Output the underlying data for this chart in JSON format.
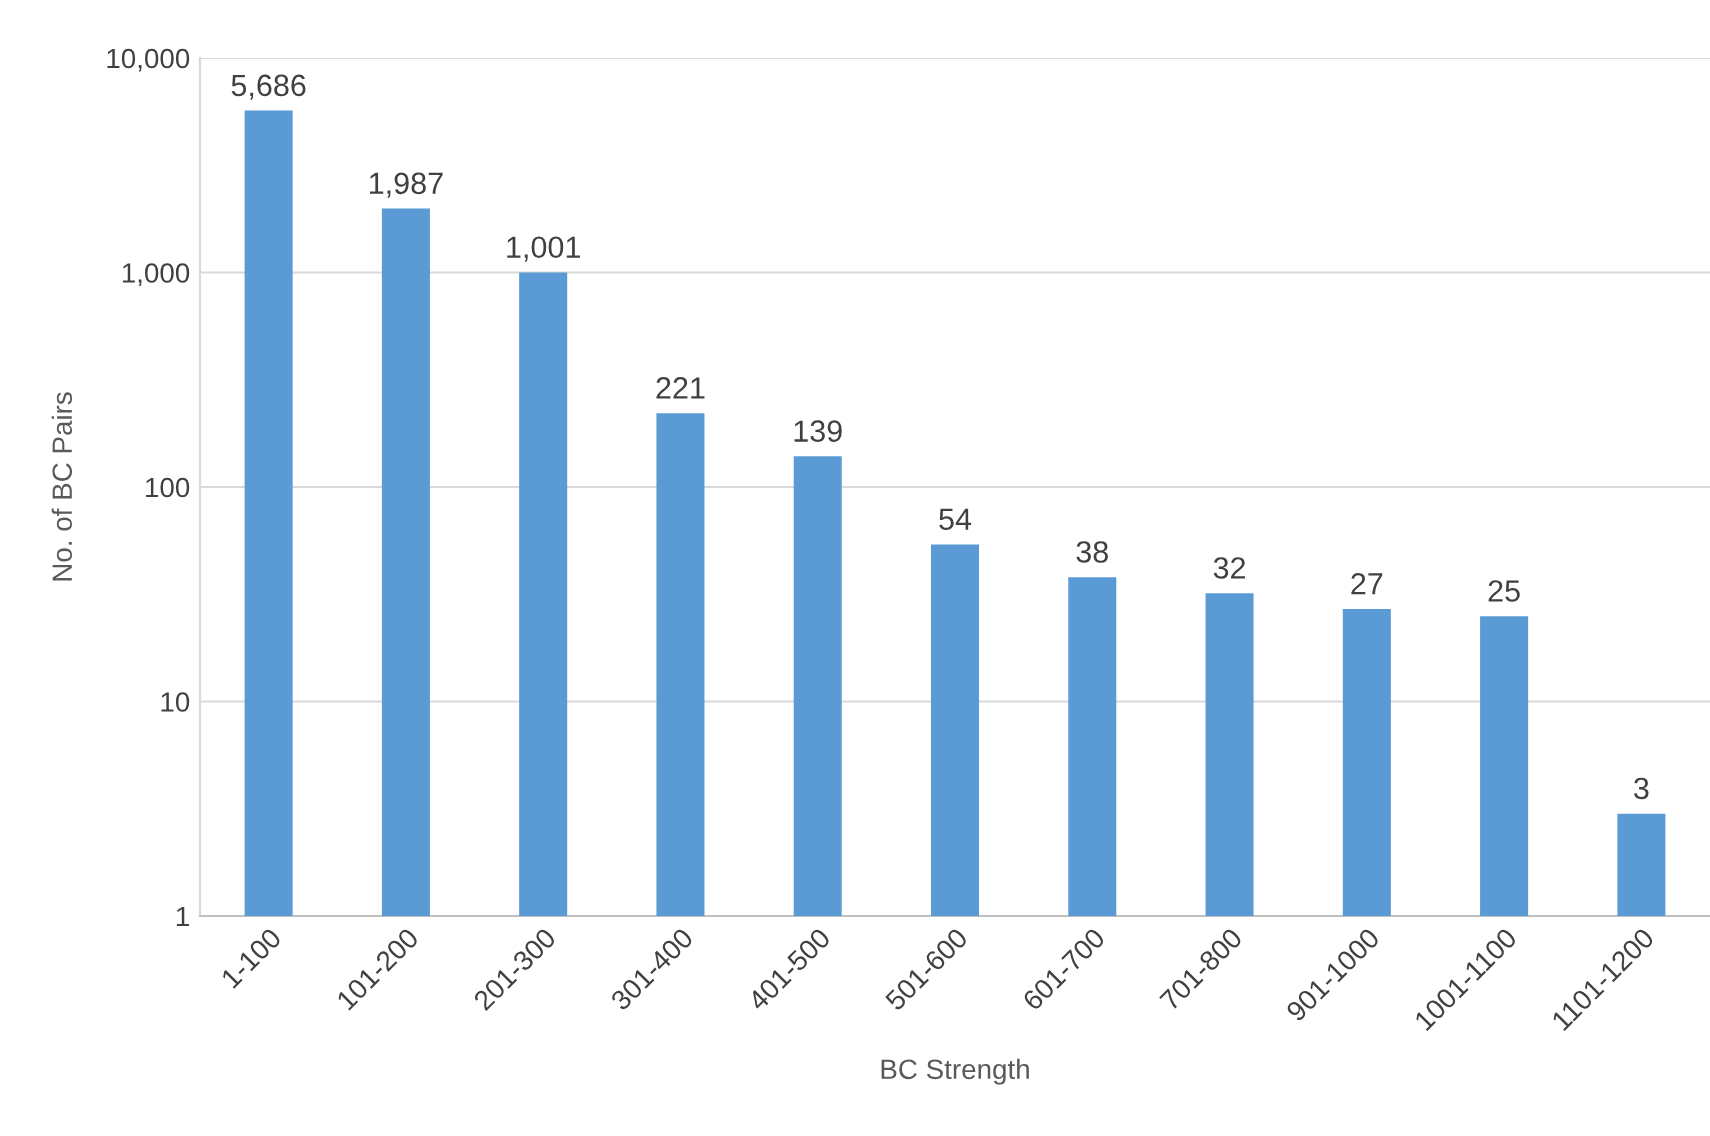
{
  "chart_data": {
    "type": "bar",
    "xlabel": "BC Strength",
    "ylabel": "No. of BC Pairs",
    "categories": [
      "1-100",
      "101-200",
      "201-300",
      "301-400",
      "401-500",
      "501-600",
      "601-700",
      "701-800",
      "901-1000",
      "1001-1100",
      "1101-1200"
    ],
    "values": [
      5686,
      1987,
      1001,
      221,
      139,
      54,
      38,
      32,
      27,
      25,
      3
    ],
    "value_labels": [
      "5,686",
      "1,987",
      "1,001",
      "221",
      "139",
      "54",
      "38",
      "32",
      "27",
      "25",
      "3"
    ],
    "color": "#5b9bd5",
    "log": "y",
    "ylim": [
      1,
      10000
    ],
    "yticks": [
      1,
      10,
      100,
      {
        "value": 1000,
        "label": "1,000"
      },
      {
        "value": 10000,
        "label": "10,000"
      }
    ],
    "grid": "y",
    "legend": false
  }
}
